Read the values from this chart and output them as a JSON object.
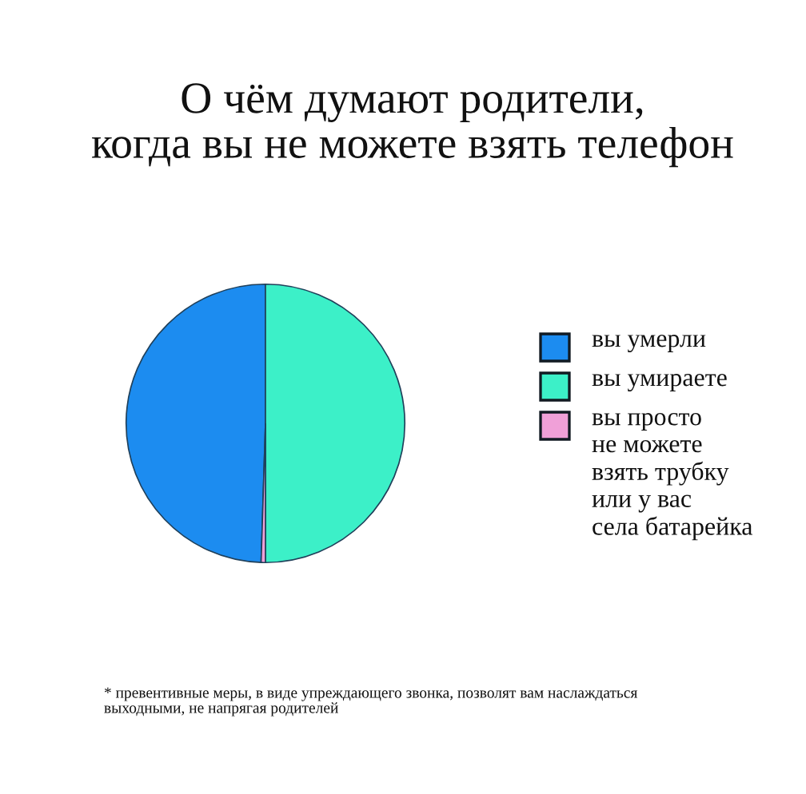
{
  "chart_data": {
    "type": "pie",
    "title": "О чём думают родители,\nкогда вы не можете взять телефон",
    "categories": [
      "вы умерли",
      "вы умираете",
      "вы просто\nне можете\nвзять трубку\nили у вас\nсела батарейка"
    ],
    "values": [
      49.5,
      50,
      0.5
    ],
    "colors": [
      "#1c8cf0",
      "#3cf0c8",
      "#f0a0d8"
    ],
    "legend": "right",
    "annotations": [
      "* превентивные меры, в виде упреждающего звонка, позволят вам наслаждаться\nвыходными, не напрягая родителей"
    ]
  }
}
